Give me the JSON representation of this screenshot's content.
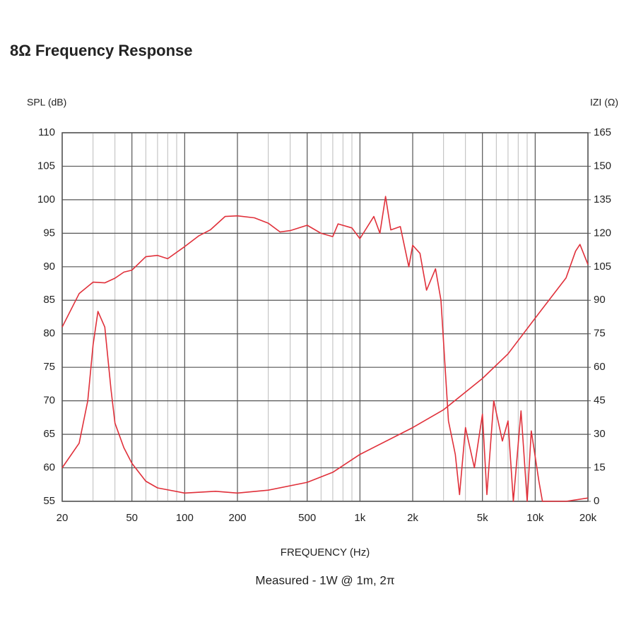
{
  "chart_data": {
    "type": "line",
    "title": "8Ω Frequency Response",
    "ylabel": "SPL (dB)",
    "y2label": "IZI (Ω)",
    "xlabel": "FREQUENCY (Hz)",
    "subtitle": "Measured - 1W @ 1m, 2π",
    "xscale": "log",
    "grid": true,
    "xlim": [
      20,
      20000
    ],
    "xticks": [
      20,
      50,
      100,
      200,
      500,
      {
        "value": 1000,
        "label": "1k"
      },
      {
        "value": 2000,
        "label": "2k"
      },
      {
        "value": 5000,
        "label": "5k"
      },
      {
        "value": 10000,
        "label": "10k"
      },
      {
        "value": 20000,
        "label": "20k"
      }
    ],
    "xminorticks": [
      30,
      40,
      60,
      70,
      80,
      90,
      300,
      400,
      600,
      700,
      800,
      900,
      3000,
      4000,
      6000,
      7000,
      8000,
      9000
    ],
    "ylim": [
      55,
      110
    ],
    "yticks": [
      55,
      60,
      65,
      70,
      75,
      80,
      85,
      90,
      95,
      100,
      105,
      110
    ],
    "y2lim": [
      0,
      165
    ],
    "y2ticks": [
      0,
      15,
      30,
      45,
      60,
      75,
      90,
      105,
      120,
      135,
      150,
      165
    ],
    "series": [
      {
        "color": "#e0303a",
        "x": [
          20,
          25,
          30,
          35,
          40,
          45,
          50,
          60,
          70,
          80,
          100,
          120,
          140,
          170,
          200,
          250,
          300,
          350,
          400,
          500,
          600,
          700,
          750,
          900,
          1000,
          1200,
          1300,
          1400,
          1500,
          1700,
          1900,
          2000,
          2200,
          2400,
          2700,
          2900,
          3200,
          3500,
          3700,
          4000,
          4500,
          5000,
          5300,
          5800,
          6500,
          7000,
          7500,
          8300,
          9000,
          9500,
          10500,
          11000,
          15000,
          20000
        ],
        "values": [
          81,
          86,
          87.7,
          87.6,
          88.3,
          89.2,
          89.5,
          91.5,
          91.7,
          91.2,
          93,
          94.6,
          95.5,
          97.5,
          97.6,
          97.3,
          96.5,
          95.2,
          95.4,
          96.2,
          95,
          94.5,
          96.4,
          95.8,
          94.2,
          97.5,
          95,
          100.5,
          95.5,
          96,
          90,
          93.2,
          92,
          86.5,
          89.7,
          85,
          67,
          62,
          56,
          66,
          60,
          68,
          56,
          70,
          64,
          67,
          55,
          68.5,
          55,
          65.5,
          58,
          55,
          55,
          55.5
        ]
      },
      {
        "color": "#e0303a",
        "axis": "y2",
        "x": [
          20,
          25,
          28,
          30,
          32,
          35,
          38,
          40,
          45,
          50,
          60,
          70,
          100,
          150,
          200,
          300,
          500,
          700,
          1000,
          2000,
          3000,
          5000,
          7000,
          10000,
          15000,
          17000,
          18000,
          20000
        ],
        "values": [
          15,
          26,
          45,
          70,
          85,
          78,
          50,
          35,
          24,
          17,
          9,
          6,
          3.7,
          4.5,
          3.7,
          5,
          8.5,
          13,
          21,
          33,
          41,
          55,
          66,
          82,
          100,
          112,
          115,
          106
        ]
      }
    ]
  }
}
